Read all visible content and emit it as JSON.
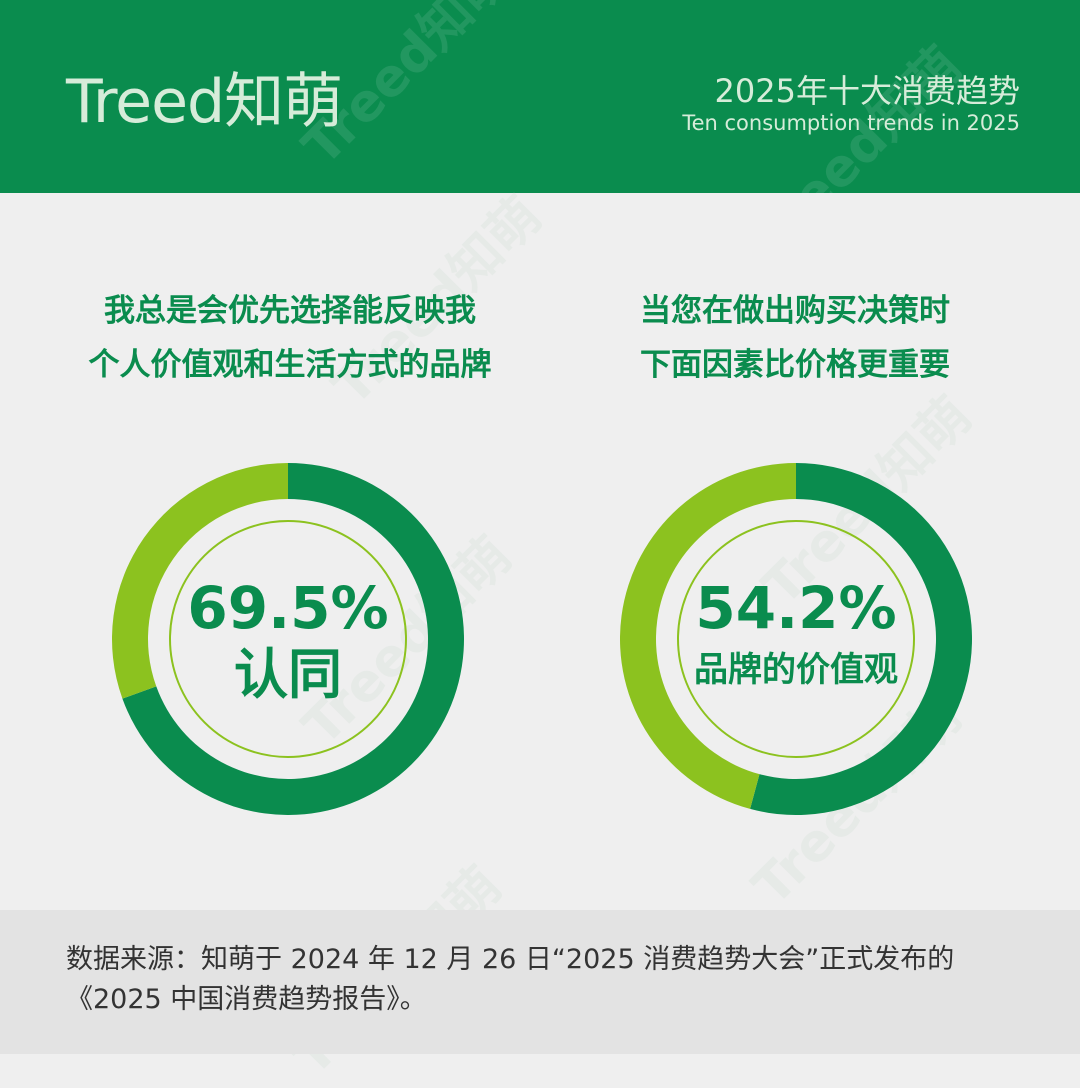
{
  "header": {
    "logo": "Treed知萌",
    "title": "2025年十大消费趋势",
    "subtitle": "Ten consumption trends in 2025",
    "watermark": "Treed知萌"
  },
  "chart_data": [
    {
      "type": "pie",
      "question_lines": [
        "我总是会优先选择能反映我",
        "个人价值观和生活方式的品牌"
      ],
      "center_value": "69.5%",
      "center_label": "认同",
      "values": [
        69.5,
        30.5
      ],
      "colors": [
        "#0a8c4e",
        "#8cc21f"
      ]
    },
    {
      "type": "pie",
      "question_lines": [
        "当您在做出购买决策时",
        "下面因素比价格更重要"
      ],
      "center_value": "54.2%",
      "center_label": "品牌的价值观",
      "values": [
        54.2,
        45.8
      ],
      "colors": [
        "#0a8c4e",
        "#8cc21f"
      ]
    }
  ],
  "footer": {
    "source": "数据来源：知萌于 2024 年 12 月 26 日“2025 消费趋势大会”正式发布的《2025 中国消费趋势报告》。"
  },
  "colors": {
    "brand_green": "#0a8c4e",
    "light_green": "#8cc21f",
    "background": "#efefef",
    "footer_background": "#e3e3e3"
  }
}
